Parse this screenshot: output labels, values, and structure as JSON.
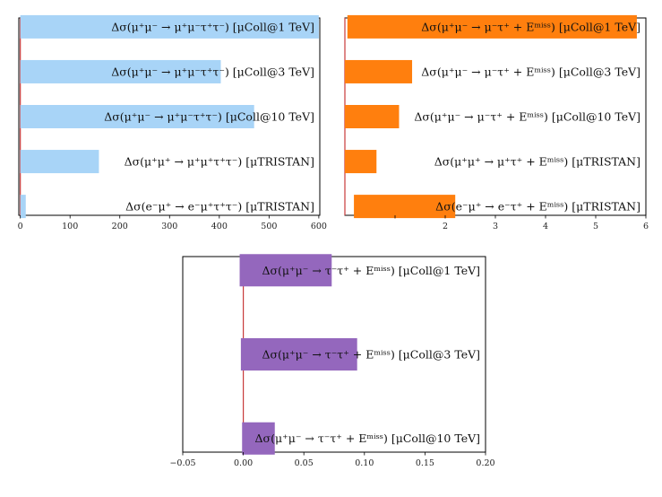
{
  "chart_data": [
    {
      "type": "bar",
      "orientation": "horizontal",
      "color": "#a8d4f7",
      "reference_line": 0,
      "reference_color": "#c83a3a",
      "xlim": [
        -3,
        602
      ],
      "xticks": [
        0,
        100,
        200,
        300,
        400,
        500,
        600
      ],
      "xtick_labels": [
        "0",
        "100",
        "200",
        "300",
        "400",
        "500",
        "600"
      ],
      "categories": [
        "Δσ(μ⁺μ⁻ → μ⁺μ⁻τ⁺τ⁻) [μColl@1 TeV]",
        "Δσ(μ⁺μ⁻ → μ⁺μ⁻τ⁺τ⁻) [μColl@3 TeV]",
        "Δσ(μ⁺μ⁻ → μ⁺μ⁻τ⁺τ⁻) [μColl@10 TeV]",
        "Δσ(μ⁺μ⁺ → μ⁺μ⁺τ⁺τ⁻) [μTRISTAN]",
        "Δσ(e⁻μ⁺ → e⁻μ⁺τ⁺τ⁻) [μTRISTAN]"
      ],
      "values": [
        600,
        403,
        470,
        158,
        11
      ]
    },
    {
      "type": "bar",
      "orientation": "horizontal",
      "color": "#ff7f0e",
      "reference_line": 0,
      "reference_color": "#c83a3a",
      "xlim": [
        0,
        6
      ],
      "xticks": [
        1,
        2,
        3,
        4,
        5,
        6
      ],
      "xtick_labels": [
        "",
        "2",
        "3",
        "4",
        "5",
        "6"
      ],
      "categories": [
        "Δσ(μ⁺μ⁻ → μ⁻τ⁺ + Eᵐⁱˢˢ) [μColl@1 TeV]",
        "Δσ(μ⁺μ⁻ → μ⁻τ⁺ + Eᵐⁱˢˢ) [μColl@3 TeV]",
        "Δσ(μ⁺μ⁻ → μ⁻τ⁺ + Eᵐⁱˢˢ) [μColl@10 TeV]",
        "Δσ(μ⁺μ⁺ → μ⁺τ⁺ + Eᵐⁱˢˢ) [μTRISTAN]",
        "Δσ(e⁻μ⁺ → e⁻τ⁺ + Eᵐⁱˢˢ) [μTRISTAN]"
      ],
      "ranges": [
        [
          0.05,
          5.82
        ],
        [
          0.0,
          1.34
        ],
        [
          0.0,
          1.08
        ],
        [
          0.0,
          0.63
        ],
        [
          0.18,
          2.2
        ]
      ]
    },
    {
      "type": "bar",
      "orientation": "horizontal",
      "color": "#9467bd",
      "reference_line": 0,
      "reference_color": "#c83a3a",
      "xlim": [
        -0.05,
        0.2
      ],
      "xticks": [
        -0.05,
        0.0,
        0.05,
        0.1,
        0.15,
        0.2
      ],
      "xtick_labels": [
        "−0.05",
        "0.00",
        "0.05",
        "0.10",
        "0.15",
        "0.20"
      ],
      "categories": [
        "Δσ(μ⁺μ⁻ → τ⁻τ⁺ + Eᵐⁱˢˢ) [μColl@1 TeV]",
        "Δσ(μ⁺μ⁻ → τ⁻τ⁺ + Eᵐⁱˢˢ) [μColl@3 TeV]",
        "Δσ(μ⁺μ⁻ → τ⁻τ⁺ + Eᵐⁱˢˢ) [μColl@10 TeV]"
      ],
      "ranges": [
        [
          -0.003,
          0.073
        ],
        [
          -0.002,
          0.094
        ],
        [
          -0.001,
          0.026
        ]
      ]
    }
  ]
}
